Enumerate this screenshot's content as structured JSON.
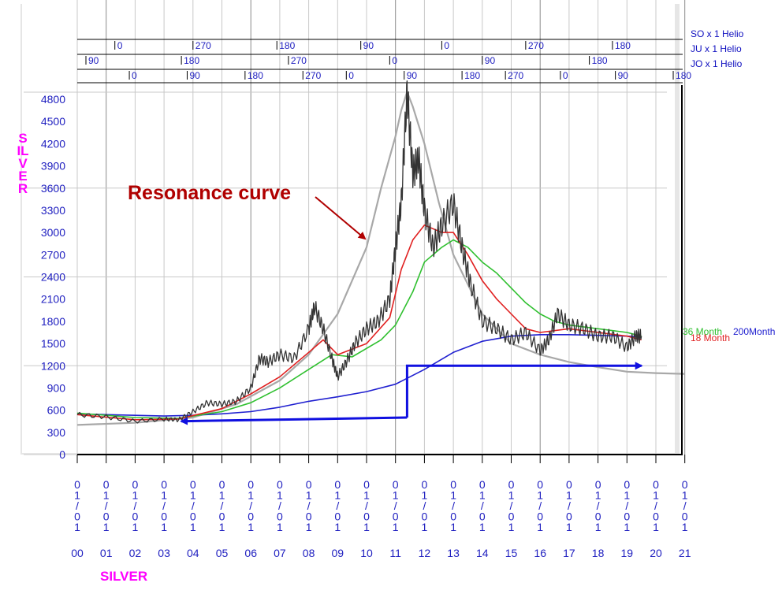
{
  "chart_data": {
    "type": "line",
    "title": "",
    "ylabel": "SILVER",
    "xlabel": "SILVER",
    "ylim": [
      0,
      5000
    ],
    "yticks": [
      0,
      300,
      600,
      900,
      1200,
      1500,
      1800,
      2100,
      2400,
      2700,
      3000,
      3300,
      3600,
      3900,
      4200,
      4500,
      4800
    ],
    "years": [
      "00",
      "01",
      "02",
      "03",
      "04",
      "05",
      "06",
      "07",
      "08",
      "09",
      "10",
      "11",
      "12",
      "13",
      "14",
      "15",
      "16",
      "17",
      "18",
      "19",
      "20",
      "21"
    ],
    "date_label": "0\n1\n/\n0\n1",
    "annotation": "Resonance curve",
    "cycle_rows": [
      {
        "name": "SO x 1 Helio",
        "labels": [
          [
            2001.3,
            "0"
          ],
          [
            2004.0,
            "270"
          ],
          [
            2006.9,
            "180"
          ],
          [
            2009.8,
            "90"
          ],
          [
            2012.6,
            "0"
          ],
          [
            2015.5,
            "270"
          ],
          [
            2018.5,
            "180"
          ]
        ]
      },
      {
        "name": "JU x 1 Helio",
        "labels": [
          [
            2000.3,
            "90"
          ],
          [
            2003.6,
            "180"
          ],
          [
            2007.3,
            "270"
          ],
          [
            2010.8,
            "0"
          ],
          [
            2014.0,
            "90"
          ],
          [
            2017.7,
            "180"
          ]
        ]
      },
      {
        "name": "JO x 1 Helio",
        "labels": [
          [
            2001.8,
            "0"
          ],
          [
            2003.8,
            "90"
          ],
          [
            2005.8,
            "180"
          ],
          [
            2007.8,
            "270"
          ],
          [
            2009.3,
            "0"
          ],
          [
            2011.3,
            "90"
          ],
          [
            2013.3,
            "180"
          ],
          [
            2014.8,
            "270"
          ],
          [
            2016.7,
            "0"
          ],
          [
            2018.6,
            "90"
          ],
          [
            2020.6,
            "180"
          ]
        ]
      }
    ],
    "legend": [
      "36 Month",
      "18 Month",
      "200Month"
    ],
    "series": [
      {
        "name": "",
        "color": "#333333",
        "x": [
          2000.0,
          2001.0,
          2002.0,
          2003.0,
          2003.5,
          2004.0,
          2004.5,
          2005.0,
          2005.5,
          2006.0,
          2006.3,
          2006.6,
          2007.0,
          2007.5,
          2008.0,
          2008.2,
          2008.5,
          2008.8,
          2009.0,
          2009.3,
          2009.6,
          2010.0,
          2010.4,
          2010.8,
          2011.0,
          2011.2,
          2011.4,
          2011.6,
          2011.8,
          2012.0,
          2012.3,
          2012.6,
          2013.0,
          2013.3,
          2013.6,
          2014.0,
          2014.5,
          2015.0,
          2015.5,
          2016.0,
          2016.3,
          2016.6,
          2017.0,
          2017.5,
          2018.0,
          2018.5,
          2019.0,
          2019.3,
          2019.5
        ],
        "y": [
          540,
          510,
          450,
          480,
          470,
          580,
          700,
          680,
          720,
          900,
          1300,
          1250,
          1350,
          1300,
          1700,
          2000,
          1700,
          1300,
          1050,
          1250,
          1500,
          1700,
          1800,
          2100,
          2800,
          3400,
          4900,
          3800,
          4000,
          3300,
          2800,
          3100,
          3400,
          2800,
          2300,
          1800,
          1700,
          1550,
          1650,
          1400,
          1550,
          1900,
          1750,
          1700,
          1600,
          1600,
          1450,
          1600,
          1600
        ]
      },
      {
        "name": "18 Month",
        "color": "#e02020",
        "x": [
          2000.0,
          2002.0,
          2003.5,
          2005.0,
          2006.0,
          2007.0,
          2008.0,
          2008.5,
          2009.0,
          2010.0,
          2010.8,
          2011.2,
          2011.6,
          2012.0,
          2012.6,
          2013.0,
          2013.5,
          2014.0,
          2014.5,
          2015.0,
          2015.5,
          2016.0,
          2017.0,
          2018.0,
          2019.0,
          2019.5
        ],
        "y": [
          540,
          470,
          480,
          620,
          820,
          1050,
          1380,
          1550,
          1350,
          1500,
          1850,
          2500,
          2900,
          3100,
          3000,
          3000,
          2700,
          2350,
          2100,
          1900,
          1700,
          1650,
          1700,
          1650,
          1600,
          1550
        ]
      },
      {
        "name": "36 Month",
        "color": "#30c030",
        "x": [
          2000.0,
          2002.0,
          2003.5,
          2005.0,
          2006.0,
          2007.0,
          2008.0,
          2008.8,
          2009.5,
          2010.5,
          2011.0,
          2011.6,
          2012.0,
          2012.6,
          2013.0,
          2013.5,
          2014.0,
          2014.5,
          2015.0,
          2015.5,
          2016.0,
          2016.5,
          2017.0,
          2018.0,
          2019.0,
          2019.5
        ],
        "y": [
          560,
          500,
          490,
          580,
          700,
          900,
          1150,
          1350,
          1320,
          1550,
          1750,
          2200,
          2600,
          2800,
          2900,
          2800,
          2600,
          2450,
          2250,
          2050,
          1900,
          1800,
          1750,
          1700,
          1650,
          1600
        ]
      },
      {
        "name": "200Month",
        "color": "#2020d0",
        "x": [
          2000.0,
          2001.0,
          2002.0,
          2003.0,
          2004.0,
          2005.0,
          2006.0,
          2007.0,
          2008.0,
          2009.0,
          2010.0,
          2011.0,
          2012.0,
          2013.0,
          2014.0,
          2015.0,
          2016.0,
          2017.0,
          2018.0,
          2019.0,
          2019.5
        ],
        "y": [
          550,
          540,
          530,
          520,
          530,
          550,
          580,
          640,
          720,
          780,
          850,
          950,
          1150,
          1380,
          1530,
          1600,
          1620,
          1620,
          1610,
          1600,
          1590
        ]
      },
      {
        "name": "Resonance curve",
        "color": "#a8a8a8",
        "x": [
          2000.0,
          2002.0,
          2004.0,
          2005.5,
          2007.0,
          2008.0,
          2009.0,
          2010.0,
          2010.5,
          2011.0,
          2011.2,
          2011.4,
          2011.6,
          2012.0,
          2012.5,
          2013.0,
          2014.0,
          2015.0,
          2016.0,
          2017.0,
          2018.0,
          2019.0,
          2020.0,
          2021.0
        ],
        "y": [
          400,
          430,
          500,
          680,
          1000,
          1350,
          1900,
          2800,
          3600,
          4300,
          4650,
          4900,
          4700,
          4200,
          3400,
          2700,
          1900,
          1500,
          1350,
          1250,
          1180,
          1120,
          1100,
          1090
        ]
      }
    ],
    "arrows": [
      {
        "color": "#1010e0",
        "x": [
          2011.4,
          2011.4,
          2019.5
        ],
        "y": [
          500,
          1200,
          1200
        ]
      },
      {
        "color": "#1010e0",
        "x": [
          2011.4,
          2003.6
        ],
        "y": [
          500,
          450
        ]
      }
    ]
  }
}
